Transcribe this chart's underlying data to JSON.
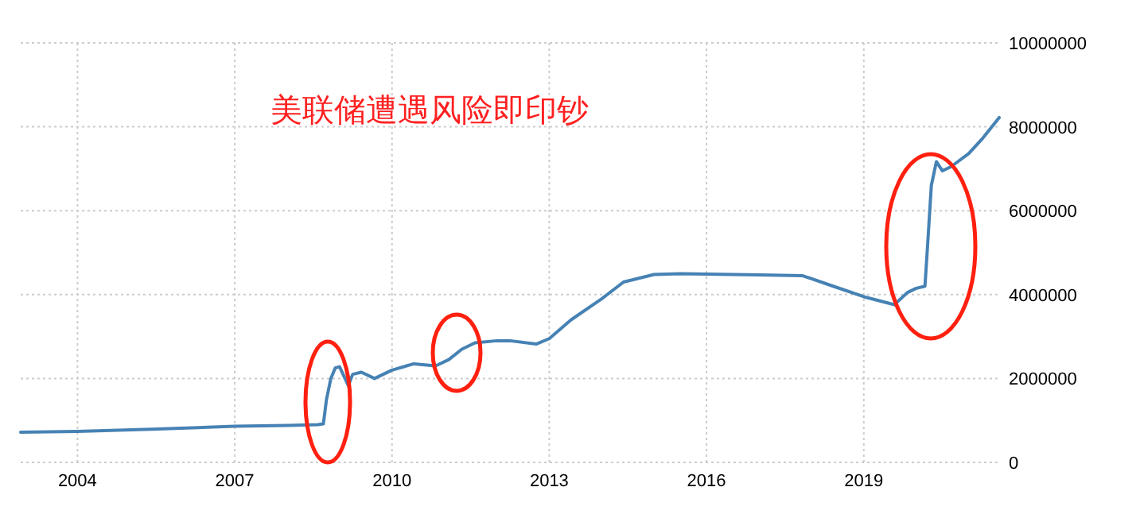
{
  "chart_data": {
    "type": "line",
    "x": [
      "2002-12",
      "2004-01",
      "2005-06",
      "2007-01",
      "2008-01",
      "2008-08",
      "2008-09-10",
      "2008-10",
      "2008-11",
      "2008-12",
      "2009-01",
      "2009-03",
      "2009-04",
      "2009-06",
      "2009-09",
      "2010-01",
      "2010-06",
      "2010-11",
      "2011-02",
      "2011-05",
      "2011-08",
      "2012-01",
      "2012-04",
      "2012-10",
      "2013-01",
      "2013-06",
      "2014-01",
      "2014-06",
      "2015-01",
      "2015-07",
      "2016-01",
      "2017-01",
      "2017-11",
      "2018-06",
      "2019-01",
      "2019-08",
      "2019-11",
      "2020-01",
      "2020-03-01",
      "2020-03-20",
      "2020-04-15",
      "2020-05-20",
      "2020-07",
      "2020-09",
      "2021-01",
      "2021-04",
      "2021-08"
    ],
    "series": [
      {
        "color": "#4682b4",
        "values": [
          720000,
          740000,
          790000,
          860000,
          880000,
          900000,
          920000,
          1500000,
          2000000,
          2250000,
          2280000,
          1830000,
          2100000,
          2150000,
          2000000,
          2200000,
          2350000,
          2300000,
          2450000,
          2700000,
          2850000,
          2900000,
          2900000,
          2820000,
          2950000,
          3400000,
          3900000,
          4300000,
          4480000,
          4500000,
          4490000,
          4470000,
          4450000,
          4200000,
          3950000,
          3760000,
          4050000,
          4150000,
          4200000,
          5200000,
          6600000,
          7170000,
          6950000,
          7050000,
          7360000,
          7700000,
          8220000
        ]
      }
    ],
    "xlim": [
      "2002-12",
      "2021-08"
    ],
    "xticks": [
      {
        "value": "2004-01-01",
        "label": "2004"
      },
      {
        "value": "2007-01-01",
        "label": "2007"
      },
      {
        "value": "2010-01-01",
        "label": "2010"
      },
      {
        "value": "2013-01-01",
        "label": "2013"
      },
      {
        "value": "2016-01-01",
        "label": "2016"
      },
      {
        "value": "2019-01-01",
        "label": "2019"
      }
    ],
    "ylim": [
      0,
      10000000
    ],
    "yticks": [
      0,
      2000000,
      4000000,
      6000000,
      8000000,
      10000000
    ],
    "grid": true,
    "annotations": [
      "美联储遭遇风险即印钞"
    ]
  }
}
